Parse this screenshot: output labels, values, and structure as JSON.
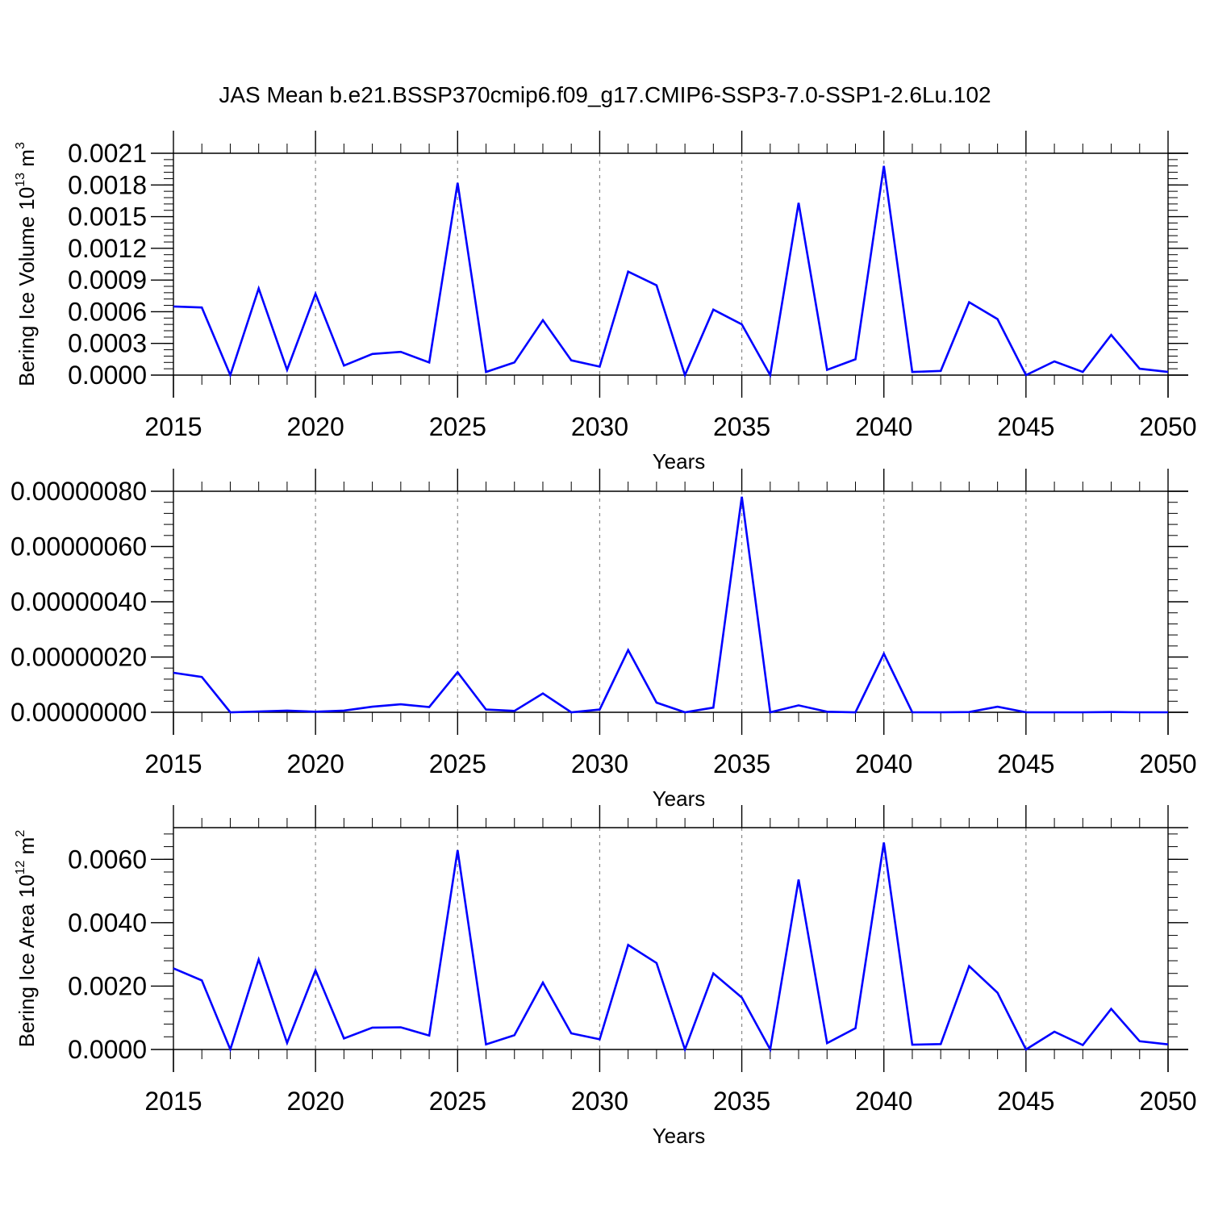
{
  "title": "JAS Mean b.e21.BSSP370cmip6.f09_g17.CMIP6-SSP3-7.0-SSP1-2.6Lu.102",
  "colors": {
    "line": "#0000ff",
    "axis": "#000000",
    "gridline": "#888888"
  },
  "chart_data": [
    {
      "type": "line",
      "ylabel": "Bering Ice Volume 10",
      "ylabel_exp": "13",
      "ylabel_unit": " m",
      "ylabel_unit_exp": "3",
      "xlabel": "Years",
      "xlim": [
        2015,
        2050
      ],
      "ylim": [
        0.0,
        0.0021
      ],
      "xticks": [
        "2015",
        "2020",
        "2025",
        "2030",
        "2035",
        "2040",
        "2045",
        "2050"
      ],
      "yticks": [
        {
          "v": 0.0,
          "label": "0.0000"
        },
        {
          "v": 0.0003,
          "label": "0.0003"
        },
        {
          "v": 0.0006,
          "label": "0.0006"
        },
        {
          "v": 0.0009,
          "label": "0.0009"
        },
        {
          "v": 0.0012,
          "label": "0.0012"
        },
        {
          "v": 0.0015,
          "label": "0.0015"
        },
        {
          "v": 0.0018,
          "label": "0.0018"
        },
        {
          "v": 0.0021,
          "label": "0.0021"
        }
      ],
      "grid_x": true,
      "x": [
        2015,
        2016,
        2017,
        2018,
        2019,
        2020,
        2021,
        2022,
        2023,
        2024,
        2025,
        2026,
        2027,
        2028,
        2029,
        2030,
        2031,
        2032,
        2033,
        2034,
        2035,
        2036,
        2037,
        2038,
        2039,
        2040,
        2041,
        2042,
        2043,
        2044,
        2045,
        2046,
        2047,
        2048,
        2049,
        2050
      ],
      "values": [
        0.00065,
        0.00064,
        0.0,
        0.00082,
        5e-05,
        0.00077,
        9e-05,
        0.0002,
        0.00022,
        0.00012,
        0.00182,
        3e-05,
        0.00012,
        0.00052,
        0.00014,
        8e-05,
        0.00098,
        0.00085,
        0.0,
        0.00062,
        0.00048,
        0.0,
        0.00163,
        5e-05,
        0.00015,
        0.00198,
        3e-05,
        4e-05,
        0.00069,
        0.00053,
        0.0,
        0.00013,
        3e-05,
        0.00038,
        6e-05,
        3e-05
      ]
    },
    {
      "type": "line",
      "ylabel": "",
      "xlabel": "Years",
      "xlim": [
        2015,
        2050
      ],
      "ylim": [
        0.0,
        8e-07
      ],
      "xticks": [
        "2015",
        "2020",
        "2025",
        "2030",
        "2035",
        "2040",
        "2045",
        "2050"
      ],
      "yticks": [
        {
          "v": 0.0,
          "label": "0.00000000"
        },
        {
          "v": 2e-07,
          "label": "0.00000020"
        },
        {
          "v": 4e-07,
          "label": "0.00000040"
        },
        {
          "v": 6e-07,
          "label": "0.00000060"
        },
        {
          "v": 8e-07,
          "label": "0.00000080"
        }
      ],
      "grid_x": true,
      "x": [
        2015,
        2016,
        2017,
        2018,
        2019,
        2020,
        2021,
        2022,
        2023,
        2024,
        2025,
        2026,
        2027,
        2028,
        2029,
        2030,
        2031,
        2032,
        2033,
        2034,
        2035,
        2036,
        2037,
        2038,
        2039,
        2040,
        2041,
        2042,
        2043,
        2044,
        2045,
        2046,
        2047,
        2048,
        2049,
        2050
      ],
      "values": [
        1.43e-07,
        1.28e-07,
        0.0,
        3e-09,
        6e-09,
        2e-09,
        6e-09,
        2e-08,
        2.9e-08,
        1.9e-08,
        1.45e-07,
        1e-08,
        5e-09,
        6.8e-08,
        0.0,
        1e-08,
        2.25e-07,
        3.5e-08,
        0.0,
        1.7e-08,
        7.8e-07,
        0.0,
        2.5e-08,
        2e-09,
        0.0,
        2.12e-07,
        0.0,
        0.0,
        1e-09,
        2e-08,
        0.0,
        0.0,
        0.0,
        1e-09,
        0.0,
        0.0
      ]
    },
    {
      "type": "line",
      "ylabel": "Bering Ice Area 10",
      "ylabel_exp": "12",
      "ylabel_unit": " m",
      "ylabel_unit_exp": "2",
      "xlabel": "Years",
      "xlim": [
        2015,
        2050
      ],
      "ylim": [
        0.0,
        0.007
      ],
      "xticks": [
        "2015",
        "2020",
        "2025",
        "2030",
        "2035",
        "2040",
        "2045",
        "2050"
      ],
      "yticks": [
        {
          "v": 0.0,
          "label": "0.0000"
        },
        {
          "v": 0.002,
          "label": "0.0020"
        },
        {
          "v": 0.004,
          "label": "0.0040"
        },
        {
          "v": 0.006,
          "label": "0.0060"
        }
      ],
      "grid_x": true,
      "x": [
        2015,
        2016,
        2017,
        2018,
        2019,
        2020,
        2021,
        2022,
        2023,
        2024,
        2025,
        2026,
        2027,
        2028,
        2029,
        2030,
        2031,
        2032,
        2033,
        2034,
        2035,
        2036,
        2037,
        2038,
        2039,
        2040,
        2041,
        2042,
        2043,
        2044,
        2045,
        2046,
        2047,
        2048,
        2049,
        2050
      ],
      "values": [
        0.00256,
        0.00218,
        0.0,
        0.00284,
        0.00021,
        0.0025,
        0.00035,
        0.00069,
        0.0007,
        0.00044,
        0.00629,
        0.00016,
        0.00045,
        0.00211,
        0.00051,
        0.00032,
        0.0033,
        0.00273,
        0.0,
        0.0024,
        0.00164,
        0.0,
        0.00536,
        0.0002,
        0.00067,
        0.00653,
        0.00015,
        0.00017,
        0.00263,
        0.00179,
        0.0,
        0.00056,
        0.00014,
        0.00128,
        0.00026,
        0.00016
      ]
    }
  ]
}
